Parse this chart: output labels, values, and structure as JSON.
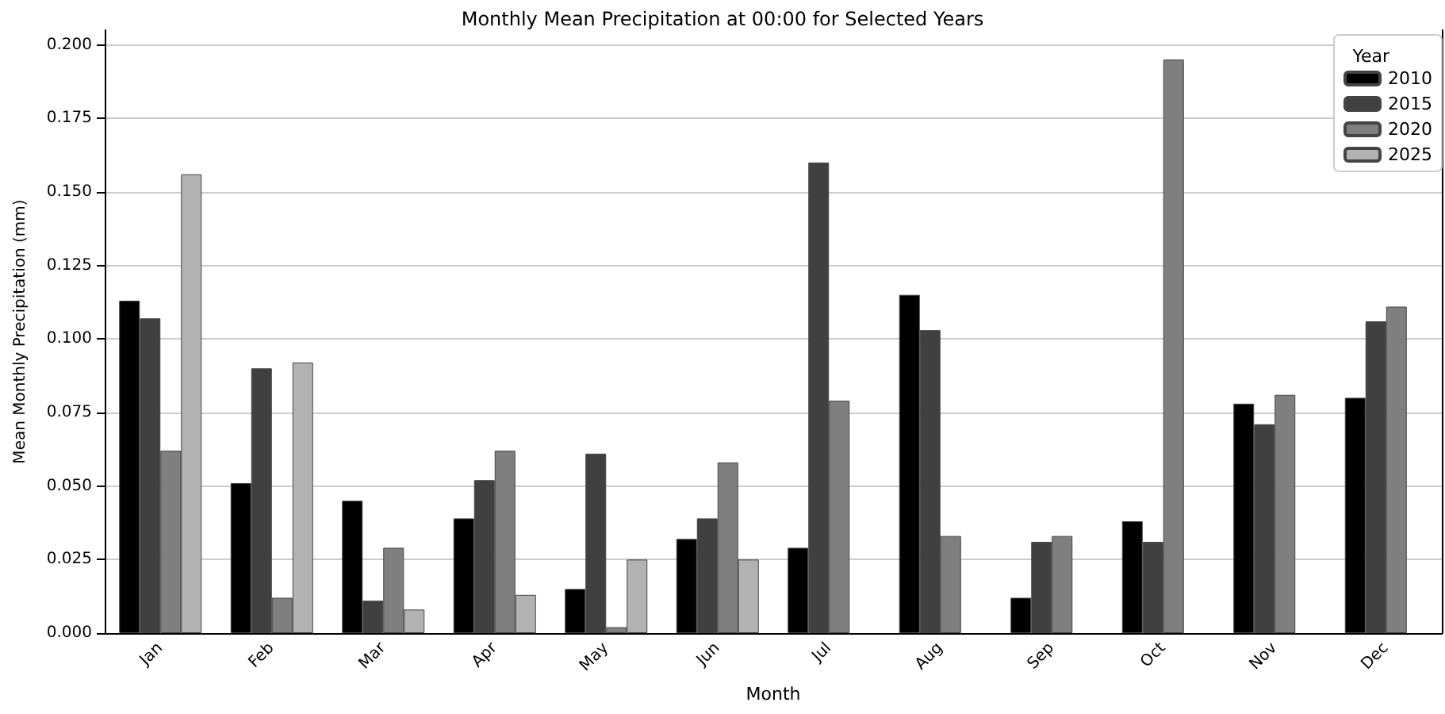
{
  "chart_data": {
    "type": "bar",
    "title": "Monthly Mean Precipitation at 00:00 for Selected Years",
    "xlabel": "Month",
    "ylabel": "Mean Monthly Precipitation (mm)",
    "legend_title": "Year",
    "legend": "top right",
    "grid": "y",
    "categories": [
      "Jan",
      "Feb",
      "Mar",
      "Apr",
      "May",
      "Jun",
      "Jul",
      "Aug",
      "Sep",
      "Oct",
      "Nov",
      "Dec"
    ],
    "series": [
      {
        "name": "2010",
        "color": "#000000",
        "values": [
          0.113,
          0.051,
          0.045,
          0.039,
          0.015,
          0.032,
          0.029,
          0.115,
          0.012,
          0.038,
          0.078,
          0.08
        ]
      },
      {
        "name": "2015",
        "color": "#404040",
        "values": [
          0.107,
          0.09,
          0.011,
          0.052,
          0.061,
          0.039,
          0.16,
          0.103,
          0.031,
          0.031,
          0.071,
          0.106
        ]
      },
      {
        "name": "2020",
        "color": "#7f7f7f",
        "values": [
          0.062,
          0.012,
          0.029,
          0.062,
          0.002,
          0.058,
          0.079,
          0.033,
          0.033,
          0.195,
          0.081,
          0.111
        ]
      },
      {
        "name": "2025",
        "color": "#b2b2b2",
        "values": [
          0.156,
          0.092,
          0.008,
          0.013,
          0.025,
          0.025,
          null,
          null,
          null,
          null,
          null,
          null
        ]
      }
    ],
    "ylim": [
      0,
      0.205
    ],
    "yticks": [
      {
        "value": 0,
        "label": "0.000"
      },
      {
        "value": 0.025,
        "label": "0.025"
      },
      {
        "value": 0.05,
        "label": "0.050"
      },
      {
        "value": 0.075,
        "label": "0.075"
      },
      {
        "value": 0.1,
        "label": "0.100"
      },
      {
        "value": 0.125,
        "label": "0.125"
      },
      {
        "value": 0.15,
        "label": "0.150"
      },
      {
        "value": 0.175,
        "label": "0.175"
      },
      {
        "value": 0.2,
        "label": "0.200"
      }
    ]
  }
}
